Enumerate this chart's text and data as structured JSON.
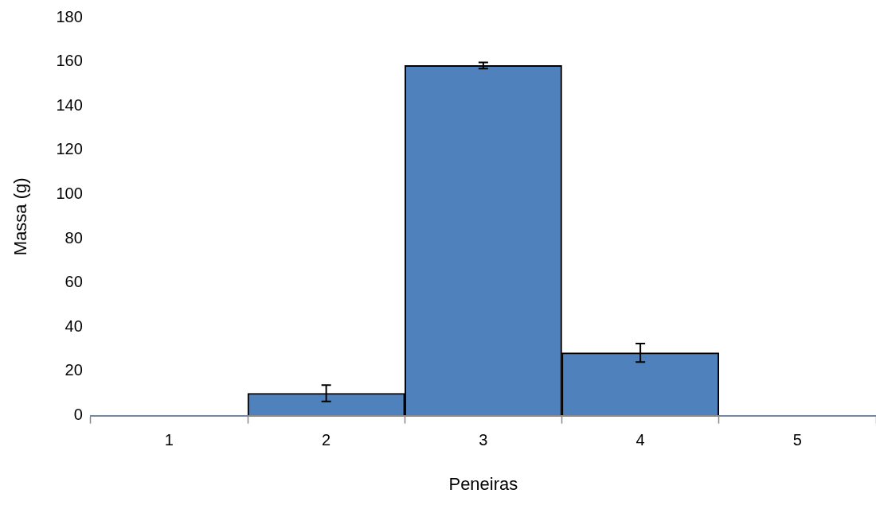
{
  "chart_data": {
    "type": "bar",
    "xlabel": "Peneiras",
    "ylabel": "Massa (g)",
    "categories": [
      "1",
      "2",
      "3",
      "4",
      "5"
    ],
    "values": [
      0,
      10.1,
      158.3,
      28.4,
      0
    ],
    "errors": [
      null,
      3.7,
      1.4,
      4.2,
      null
    ],
    "color": "#4f81bd",
    "ylim": [
      0,
      180
    ],
    "yticks": [
      0,
      20,
      40,
      60,
      80,
      100,
      120,
      140,
      160,
      180
    ],
    "grid": false,
    "legend": false
  }
}
